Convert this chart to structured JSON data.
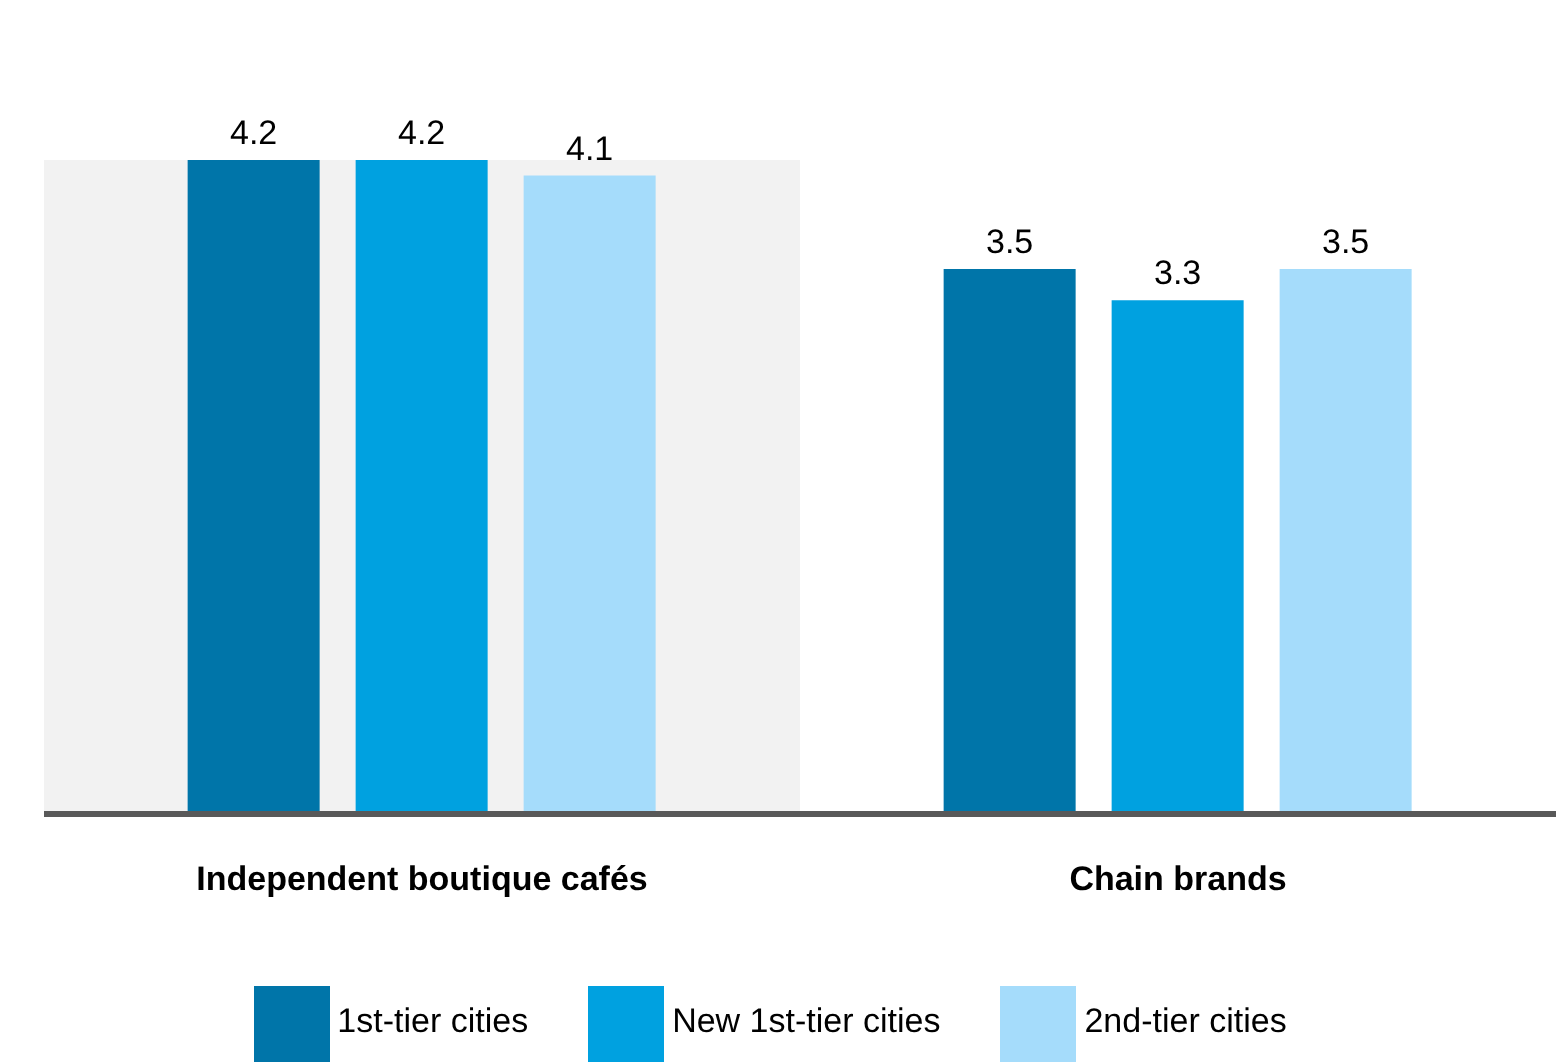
{
  "chart_data": {
    "type": "bar",
    "categories": [
      "Independent boutique cafés",
      "Chain brands"
    ],
    "series": [
      {
        "name": "1st-tier cities",
        "color": "#0075a9",
        "values": [
          4.2,
          3.5
        ]
      },
      {
        "name": "New 1st-tier cities",
        "color": "#00a1e0",
        "values": [
          4.2,
          3.3
        ]
      },
      {
        "name": "2nd-tier cities",
        "color": "#a5dcfb",
        "values": [
          4.1,
          3.5
        ]
      }
    ],
    "data_labels": true,
    "legend": "bottom",
    "grid": false,
    "bands": [
      {
        "axis": "x",
        "from": "Independent boutique cafés",
        "to": "Independent boutique cafés",
        "color": "#f2f2f2"
      }
    ]
  }
}
